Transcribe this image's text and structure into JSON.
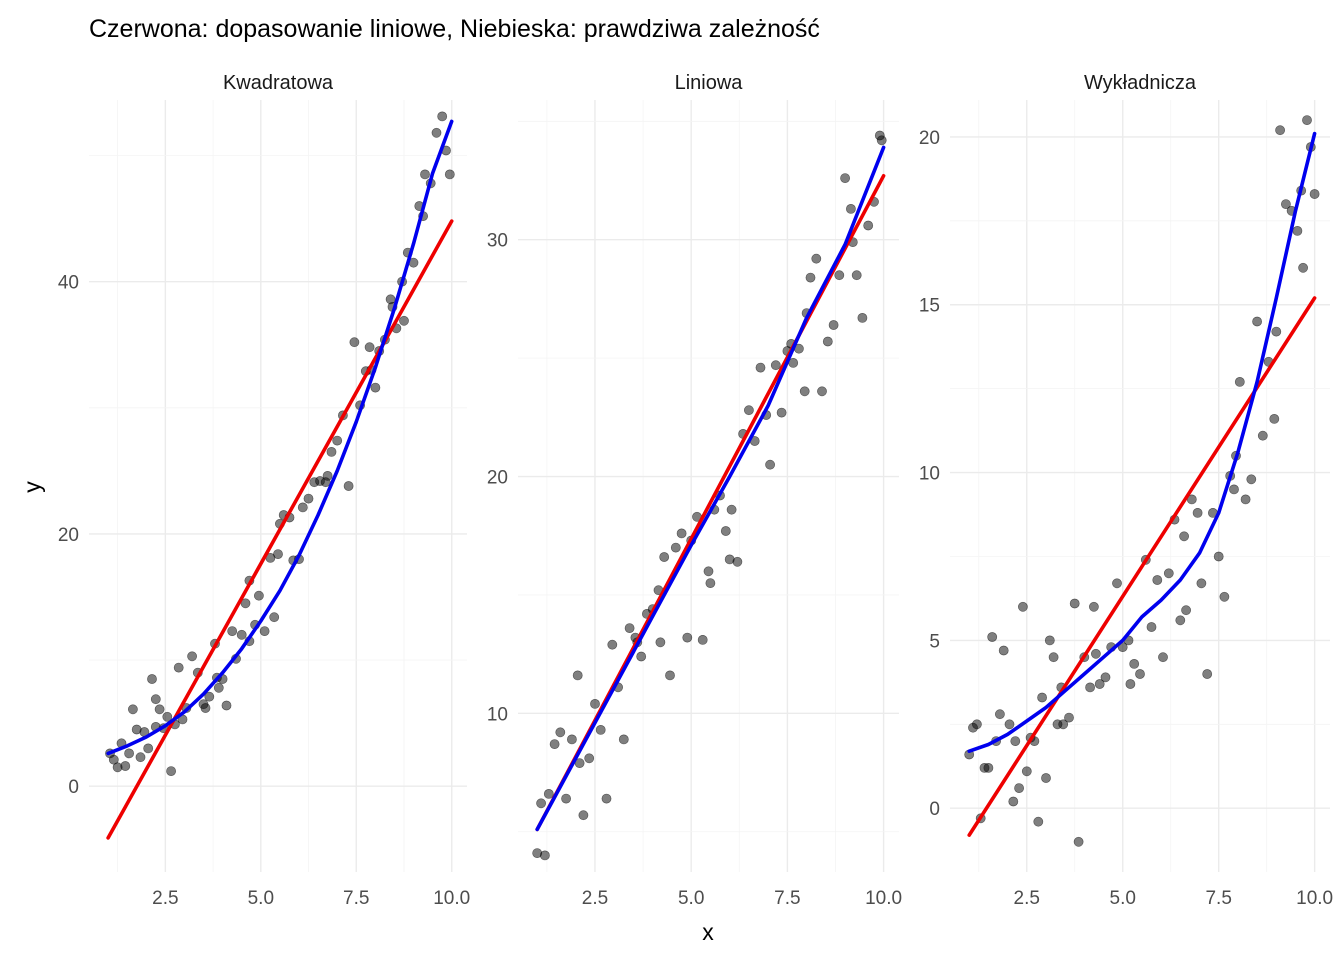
{
  "title": "Czerwona: dopasowanie liniowe, Niebieska: prawdziwa zależność",
  "colors": {
    "linear_fit": "#ee0000",
    "true_relation": "#0000ee",
    "points": "#000000",
    "grid": "#ebebeb",
    "background": "#ffffff"
  },
  "chart_data": {
    "type": "scatter",
    "layout": "facets, 1 row x 3 columns, free y scales",
    "xlabel": "x",
    "ylabel": "y",
    "grid": true,
    "legend": "none",
    "xlim": [
      0.5,
      10.4
    ],
    "x_ticks": [
      "2.5",
      "5.0",
      "7.5",
      "10.0"
    ],
    "panels": [
      {
        "strip": "Kwadratowa",
        "ylim": [
          -6.8,
          54.4
        ],
        "y_ticks": [
          "0",
          "20",
          "40"
        ],
        "points": [
          [
            1.05,
            2.6
          ],
          [
            1.15,
            2.1
          ],
          [
            1.25,
            1.5
          ],
          [
            1.35,
            3.4
          ],
          [
            1.45,
            1.6
          ],
          [
            1.55,
            2.6
          ],
          [
            1.65,
            6.1
          ],
          [
            1.75,
            4.5
          ],
          [
            1.85,
            2.3
          ],
          [
            1.95,
            4.3
          ],
          [
            2.05,
            3.0
          ],
          [
            2.15,
            8.5
          ],
          [
            2.25,
            6.9
          ],
          [
            2.35,
            6.1
          ],
          [
            2.45,
            4.6
          ],
          [
            2.55,
            5.5
          ],
          [
            2.65,
            1.2
          ],
          [
            2.75,
            4.9
          ],
          [
            2.85,
            9.4
          ],
          [
            2.95,
            5.3
          ],
          [
            3.05,
            6.2
          ],
          [
            3.2,
            10.3
          ],
          [
            3.35,
            9.0
          ],
          [
            3.5,
            6.5
          ],
          [
            3.65,
            7.1
          ],
          [
            3.8,
            11.3
          ],
          [
            3.9,
            7.8
          ],
          [
            4.0,
            8.5
          ],
          [
            4.1,
            6.4
          ],
          [
            4.25,
            12.3
          ],
          [
            4.35,
            10.1
          ],
          [
            4.5,
            12.0
          ],
          [
            4.6,
            14.5
          ],
          [
            4.7,
            16.3
          ],
          [
            4.85,
            12.8
          ],
          [
            4.95,
            15.1
          ],
          [
            5.1,
            12.3
          ],
          [
            5.25,
            18.1
          ],
          [
            5.35,
            13.4
          ],
          [
            5.5,
            20.8
          ],
          [
            5.6,
            21.5
          ],
          [
            5.75,
            21.3
          ],
          [
            5.85,
            17.9
          ],
          [
            6.0,
            18.0
          ],
          [
            6.1,
            22.1
          ],
          [
            6.25,
            22.8
          ],
          [
            6.4,
            24.1
          ],
          [
            6.55,
            24.2
          ],
          [
            6.7,
            24.1
          ],
          [
            6.85,
            26.5
          ],
          [
            7.0,
            27.4
          ],
          [
            7.15,
            29.4
          ],
          [
            7.3,
            23.8
          ],
          [
            7.45,
            35.2
          ],
          [
            7.6,
            30.2
          ],
          [
            7.75,
            32.9
          ],
          [
            7.85,
            34.8
          ],
          [
            8.0,
            31.6
          ],
          [
            8.1,
            34.5
          ],
          [
            8.25,
            35.4
          ],
          [
            8.4,
            38.6
          ],
          [
            8.55,
            36.3
          ],
          [
            8.7,
            40.0
          ],
          [
            8.85,
            42.3
          ],
          [
            9.0,
            41.5
          ],
          [
            9.15,
            46.0
          ],
          [
            9.3,
            48.5
          ],
          [
            9.45,
            47.8
          ],
          [
            9.6,
            51.8
          ],
          [
            9.75,
            53.1
          ],
          [
            9.85,
            50.4
          ],
          [
            9.95,
            48.5
          ],
          [
            8.45,
            38.0
          ],
          [
            7.9,
            33.0
          ],
          [
            8.75,
            36.9
          ],
          [
            6.75,
            24.6
          ],
          [
            5.45,
            18.4
          ],
          [
            3.55,
            6.2
          ],
          [
            4.7,
            11.5
          ],
          [
            3.85,
            8.6
          ],
          [
            9.25,
            45.2
          ],
          [
            2.25,
            4.7
          ]
        ],
        "linear_fit": [
          [
            1.0,
            -4.1
          ],
          [
            10.0,
            44.8
          ]
        ],
        "true_relation": [
          [
            1.0,
            2.6
          ],
          [
            1.5,
            3.2
          ],
          [
            2.0,
            3.9
          ],
          [
            2.5,
            4.8
          ],
          [
            3.0,
            5.9
          ],
          [
            3.5,
            7.3
          ],
          [
            4.0,
            9.0
          ],
          [
            4.5,
            10.9
          ],
          [
            5.0,
            13.1
          ],
          [
            5.5,
            15.5
          ],
          [
            6.0,
            18.3
          ],
          [
            6.5,
            21.5
          ],
          [
            7.0,
            25.0
          ],
          [
            7.5,
            28.9
          ],
          [
            8.0,
            33.2
          ],
          [
            8.5,
            37.9
          ],
          [
            9.0,
            43.0
          ],
          [
            9.5,
            48.6
          ],
          [
            10.0,
            52.7
          ]
        ]
      },
      {
        "strip": "Liniowa",
        "ylim": [
          3.3,
          35.9
        ],
        "y_ticks": [
          "10",
          "20",
          "30"
        ],
        "points": [
          [
            1.0,
            4.1
          ],
          [
            1.1,
            6.2
          ],
          [
            1.2,
            4.0
          ],
          [
            1.3,
            6.6
          ],
          [
            1.45,
            8.7
          ],
          [
            1.6,
            9.2
          ],
          [
            1.75,
            6.4
          ],
          [
            1.9,
            8.9
          ],
          [
            2.05,
            11.6
          ],
          [
            2.2,
            5.7
          ],
          [
            2.35,
            8.1
          ],
          [
            2.5,
            10.4
          ],
          [
            2.65,
            9.3
          ],
          [
            2.8,
            6.4
          ],
          [
            2.95,
            12.9
          ],
          [
            3.1,
            11.1
          ],
          [
            3.25,
            8.9
          ],
          [
            3.4,
            13.6
          ],
          [
            3.55,
            13.2
          ],
          [
            3.7,
            12.4
          ],
          [
            3.85,
            14.2
          ],
          [
            4.0,
            14.4
          ],
          [
            4.15,
            15.2
          ],
          [
            4.3,
            16.6
          ],
          [
            4.45,
            11.6
          ],
          [
            4.6,
            17.0
          ],
          [
            4.75,
            17.6
          ],
          [
            4.9,
            13.2
          ],
          [
            5.0,
            17.3
          ],
          [
            5.15,
            18.3
          ],
          [
            5.3,
            13.1
          ],
          [
            5.45,
            16.0
          ],
          [
            5.6,
            18.6
          ],
          [
            5.75,
            19.2
          ],
          [
            5.9,
            17.7
          ],
          [
            6.05,
            18.6
          ],
          [
            6.2,
            16.4
          ],
          [
            6.35,
            21.8
          ],
          [
            6.5,
            22.8
          ],
          [
            6.65,
            21.5
          ],
          [
            6.8,
            24.6
          ],
          [
            6.95,
            22.6
          ],
          [
            7.05,
            20.5
          ],
          [
            7.2,
            24.7
          ],
          [
            7.35,
            22.7
          ],
          [
            7.5,
            25.3
          ],
          [
            7.65,
            24.8
          ],
          [
            7.8,
            25.4
          ],
          [
            7.95,
            23.6
          ],
          [
            8.1,
            28.4
          ],
          [
            8.25,
            29.2
          ],
          [
            8.4,
            23.6
          ],
          [
            8.55,
            25.7
          ],
          [
            8.7,
            26.4
          ],
          [
            8.85,
            28.5
          ],
          [
            9.0,
            32.6
          ],
          [
            9.15,
            31.3
          ],
          [
            9.3,
            28.5
          ],
          [
            9.45,
            26.7
          ],
          [
            9.6,
            30.6
          ],
          [
            9.75,
            31.6
          ],
          [
            9.9,
            34.4
          ],
          [
            9.95,
            34.2
          ],
          [
            3.6,
            13.0
          ],
          [
            4.2,
            13.0
          ],
          [
            6.0,
            16.5
          ],
          [
            7.6,
            25.6
          ],
          [
            5.5,
            15.5
          ],
          [
            2.1,
            7.9
          ],
          [
            8.0,
            26.9
          ],
          [
            9.2,
            29.9
          ]
        ],
        "linear_fit": [
          [
            1.0,
            5.1
          ],
          [
            10.0,
            32.7
          ]
        ],
        "true_relation": [
          [
            1.0,
            5.1
          ],
          [
            2.0,
            8.1
          ],
          [
            3.0,
            11.1
          ],
          [
            4.0,
            14.1
          ],
          [
            5.0,
            17.1
          ],
          [
            6.0,
            20.0
          ],
          [
            7.0,
            23.0
          ],
          [
            8.0,
            26.7
          ],
          [
            9.0,
            29.8
          ],
          [
            10.0,
            33.9
          ]
        ]
      },
      {
        "strip": "Wykładnicza",
        "ylim": [
          -1.9,
          21.1
        ],
        "y_ticks": [
          "0",
          "5",
          "10",
          "15",
          "20"
        ],
        "points": [
          [
            1.0,
            1.6
          ],
          [
            1.1,
            2.4
          ],
          [
            1.2,
            2.5
          ],
          [
            1.3,
            -0.3
          ],
          [
            1.4,
            1.2
          ],
          [
            1.5,
            1.2
          ],
          [
            1.6,
            5.1
          ],
          [
            1.7,
            2.0
          ],
          [
            1.8,
            2.8
          ],
          [
            1.9,
            4.7
          ],
          [
            2.05,
            2.5
          ],
          [
            2.15,
            0.2
          ],
          [
            2.3,
            0.6
          ],
          [
            2.4,
            6.0
          ],
          [
            2.5,
            1.1
          ],
          [
            2.6,
            2.1
          ],
          [
            2.7,
            2.0
          ],
          [
            2.8,
            -0.4
          ],
          [
            2.9,
            3.3
          ],
          [
            3.0,
            0.9
          ],
          [
            3.1,
            5.0
          ],
          [
            3.2,
            4.5
          ],
          [
            3.3,
            2.5
          ],
          [
            3.45,
            2.5
          ],
          [
            3.6,
            2.7
          ],
          [
            3.75,
            6.1
          ],
          [
            3.85,
            -1.0
          ],
          [
            4.0,
            4.5
          ],
          [
            4.15,
            3.6
          ],
          [
            4.25,
            6.0
          ],
          [
            4.4,
            3.7
          ],
          [
            4.55,
            3.9
          ],
          [
            4.7,
            4.8
          ],
          [
            4.85,
            6.7
          ],
          [
            5.0,
            4.8
          ],
          [
            5.15,
            5.0
          ],
          [
            5.3,
            4.3
          ],
          [
            5.45,
            4.0
          ],
          [
            5.6,
            7.4
          ],
          [
            5.75,
            5.4
          ],
          [
            5.9,
            6.8
          ],
          [
            6.05,
            4.5
          ],
          [
            6.2,
            7.0
          ],
          [
            6.35,
            8.6
          ],
          [
            6.5,
            5.6
          ],
          [
            6.65,
            5.9
          ],
          [
            6.8,
            9.2
          ],
          [
            6.95,
            8.8
          ],
          [
            7.05,
            6.7
          ],
          [
            7.2,
            4.0
          ],
          [
            7.35,
            8.8
          ],
          [
            7.5,
            7.5
          ],
          [
            7.65,
            6.3
          ],
          [
            7.8,
            9.9
          ],
          [
            7.95,
            10.5
          ],
          [
            8.05,
            12.7
          ],
          [
            8.2,
            9.2
          ],
          [
            8.35,
            9.8
          ],
          [
            8.5,
            14.5
          ],
          [
            8.65,
            11.1
          ],
          [
            8.8,
            13.3
          ],
          [
            8.95,
            11.6
          ],
          [
            9.1,
            20.2
          ],
          [
            9.25,
            18.0
          ],
          [
            9.4,
            17.8
          ],
          [
            9.55,
            17.2
          ],
          [
            9.7,
            16.1
          ],
          [
            9.8,
            20.5
          ],
          [
            9.9,
            19.7
          ],
          [
            10.0,
            18.3
          ],
          [
            9.65,
            18.4
          ],
          [
            9.0,
            14.2
          ],
          [
            7.9,
            9.5
          ],
          [
            5.2,
            3.7
          ],
          [
            2.2,
            2.0
          ],
          [
            3.4,
            3.6
          ],
          [
            4.3,
            4.6
          ],
          [
            6.6,
            8.1
          ]
        ],
        "linear_fit": [
          [
            1.0,
            -0.8
          ],
          [
            10.0,
            15.2
          ]
        ],
        "true_relation": [
          [
            1.0,
            1.7
          ],
          [
            1.5,
            1.9
          ],
          [
            2.0,
            2.2
          ],
          [
            2.5,
            2.6
          ],
          [
            3.0,
            3.0
          ],
          [
            3.5,
            3.5
          ],
          [
            4.0,
            4.0
          ],
          [
            4.5,
            4.5
          ],
          [
            5.0,
            5.0
          ],
          [
            5.5,
            5.7
          ],
          [
            6.0,
            6.2
          ],
          [
            6.5,
            6.8
          ],
          [
            7.0,
            7.6
          ],
          [
            7.5,
            8.8
          ],
          [
            8.0,
            10.6
          ],
          [
            8.5,
            12.7
          ],
          [
            9.0,
            15.2
          ],
          [
            9.5,
            17.8
          ],
          [
            10.0,
            20.1
          ]
        ]
      }
    ]
  }
}
